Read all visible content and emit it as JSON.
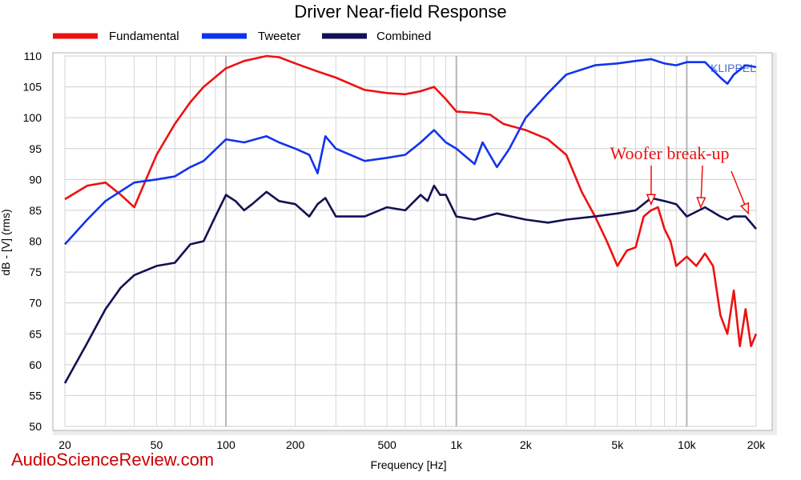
{
  "watermark": "AudioScienceReview.com",
  "chart_data": {
    "type": "line",
    "title": "Driver Near-field Response",
    "xlabel": "Frequency [Hz]",
    "ylabel": "dB - [V] (rms)",
    "x_scale": "log",
    "xlim": [
      20,
      20000
    ],
    "ylim": [
      50,
      110
    ],
    "grid": true,
    "legend_position": "top-left",
    "x_ticks": [
      {
        "value": 20,
        "label": "20"
      },
      {
        "value": 50,
        "label": "50"
      },
      {
        "value": 100,
        "label": "100"
      },
      {
        "value": 200,
        "label": "200"
      },
      {
        "value": 500,
        "label": "500"
      },
      {
        "value": 1000,
        "label": "1k"
      },
      {
        "value": 2000,
        "label": "2k"
      },
      {
        "value": 5000,
        "label": "5k"
      },
      {
        "value": 10000,
        "label": "10k"
      },
      {
        "value": 20000,
        "label": "20k"
      }
    ],
    "y_ticks": [
      50,
      55,
      60,
      65,
      70,
      75,
      80,
      85,
      90,
      95,
      100,
      105,
      110
    ],
    "brand": "KLIPPEL",
    "brand_color": "#4a6fc9",
    "annotation": {
      "text": "Woofer break-up",
      "color": "#ee1111",
      "arrow_targets": [
        7000,
        11500,
        18500
      ]
    },
    "series": [
      {
        "name": "Fundamental",
        "color": "#ee1111",
        "x": [
          20,
          25,
          30,
          35,
          40,
          45,
          50,
          60,
          70,
          80,
          100,
          120,
          150,
          170,
          200,
          250,
          300,
          400,
          500,
          600,
          700,
          800,
          900,
          1000,
          1200,
          1400,
          1600,
          2000,
          2500,
          3000,
          3500,
          4000,
          4500,
          5000,
          5500,
          6000,
          6500,
          7000,
          7500,
          8000,
          8500,
          9000,
          10000,
          11000,
          12000,
          13000,
          14000,
          15000,
          16000,
          17000,
          18000,
          19000,
          20000
        ],
        "y": [
          86.8,
          89,
          89.5,
          87.5,
          85.5,
          90,
          94,
          99,
          102.5,
          105,
          108,
          109.2,
          110,
          109.8,
          108.8,
          107.5,
          106.5,
          104.5,
          104,
          103.8,
          104.3,
          105,
          103,
          101,
          100.8,
          100.5,
          99,
          98,
          96.5,
          94,
          88,
          84,
          80,
          76,
          78.5,
          79,
          84,
          85,
          85.5,
          82,
          80,
          76,
          77.5,
          76,
          78,
          76,
          68,
          65,
          72,
          63,
          69,
          63,
          65
        ]
      },
      {
        "name": "Tweeter",
        "color": "#1133ee",
        "x": [
          20,
          25,
          30,
          40,
          50,
          60,
          70,
          80,
          100,
          120,
          150,
          170,
          200,
          230,
          250,
          270,
          300,
          400,
          500,
          600,
          700,
          800,
          900,
          1000,
          1200,
          1300,
          1500,
          1700,
          2000,
          2500,
          3000,
          4000,
          5000,
          6000,
          7000,
          8000,
          9000,
          10000,
          12000,
          14000,
          15000,
          16000,
          18000,
          20000
        ],
        "y": [
          79.5,
          83.5,
          86.5,
          89.5,
          90,
          90.5,
          92,
          93,
          96.5,
          96,
          97,
          96,
          95,
          94,
          91,
          97,
          95,
          93,
          93.5,
          94,
          96,
          98,
          96,
          95,
          92.5,
          96,
          92,
          95,
          100,
          104,
          107,
          108.5,
          108.8,
          109.2,
          109.5,
          108.8,
          108.5,
          109,
          109,
          106.5,
          105.5,
          107,
          108.5,
          108.2
        ]
      },
      {
        "name": "Combined",
        "color": "#111155",
        "x": [
          20,
          25,
          30,
          35,
          40,
          50,
          60,
          70,
          80,
          90,
          100,
          110,
          120,
          130,
          150,
          170,
          200,
          230,
          250,
          270,
          300,
          400,
          500,
          600,
          700,
          750,
          800,
          850,
          900,
          1000,
          1200,
          1500,
          2000,
          2500,
          3000,
          4000,
          5000,
          6000,
          7000,
          8000,
          9000,
          10000,
          12000,
          14000,
          15000,
          16000,
          18000,
          20000
        ],
        "y": [
          57,
          63.5,
          69,
          72.5,
          74.5,
          76,
          76.5,
          79.5,
          80,
          84,
          87.5,
          86.5,
          85,
          86,
          88,
          86.5,
          86,
          84,
          86,
          87,
          84,
          84,
          85.5,
          85,
          87.5,
          86.5,
          89,
          87.5,
          87.5,
          84,
          83.5,
          84.5,
          83.5,
          83,
          83.5,
          84,
          84.5,
          85,
          87,
          86.5,
          86,
          84,
          85.5,
          84,
          83.5,
          84,
          84,
          82
        ]
      }
    ]
  }
}
